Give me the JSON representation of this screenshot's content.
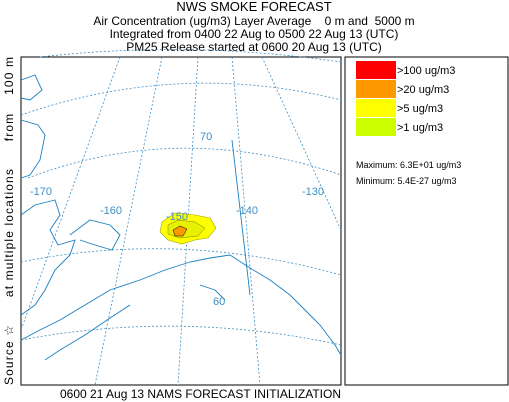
{
  "header": {
    "title": "NWS SMOKE FORECAST",
    "lines": [
      "Air Concentration (ug/m3) Layer Average    0 m and  5000 m",
      "Integrated from 0400 22 Aug to 0500 22 Aug 13 (UTC)",
      "PM25 Release started at 0600 20 Aug 13 (UTC)"
    ]
  },
  "legend": {
    "items": [
      {
        "label": ">100 ug/m3",
        "color": "#ff0000"
      },
      {
        "label": ">20 ug/m3",
        "color": "#ff9900"
      },
      {
        "label": ">5 ug/m3",
        "color": "#ffff00"
      },
      {
        "label": ">1 ug/m3",
        "color": "#ccff00"
      }
    ],
    "maximum": "Maximum: 6.3E+01 ug/m3",
    "minimum": "Minimum: 5.4E-27 ug/m3"
  },
  "map": {
    "labels": [
      "-170",
      "-160",
      "-150",
      "-140",
      "-130",
      "70",
      "60"
    ]
  },
  "side_label": "Source ☆      at multiple locations      from    100 m",
  "footer": "0600 21 Aug 13 NAMS FORECAST INITIALIZATION"
}
